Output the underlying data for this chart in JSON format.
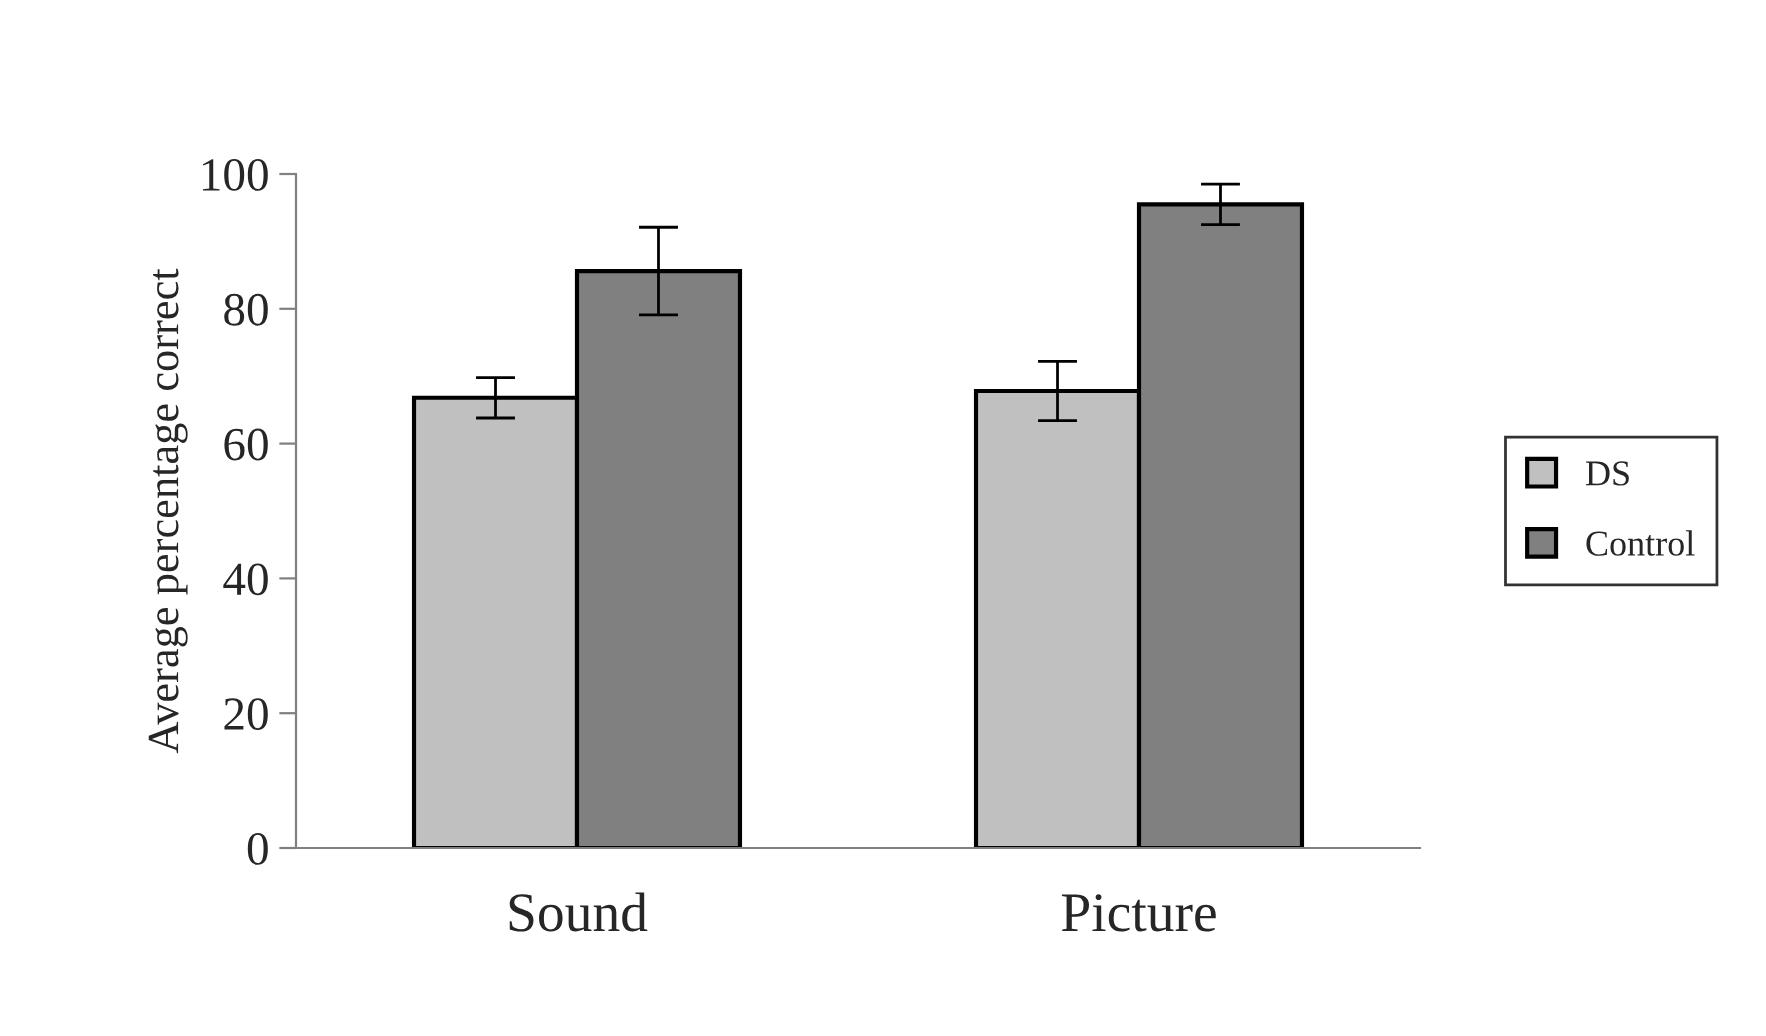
{
  "chart_data": {
    "type": "bar",
    "ylabel": "Average percentage correct",
    "categories": [
      "Sound",
      "Picture"
    ],
    "series": [
      {
        "name": "DS",
        "color": "#c0c0c0",
        "values": [
          66.8,
          67.8
        ],
        "errors": [
          3,
          4.4
        ]
      },
      {
        "name": "Control",
        "color": "#808080",
        "values": [
          85.6,
          95.5
        ],
        "errors": [
          6.5,
          3
        ]
      }
    ],
    "ylim": [
      0,
      100
    ],
    "yticks": [
      0,
      20,
      40,
      60,
      80,
      100
    ],
    "grid": false,
    "legend": "right"
  }
}
